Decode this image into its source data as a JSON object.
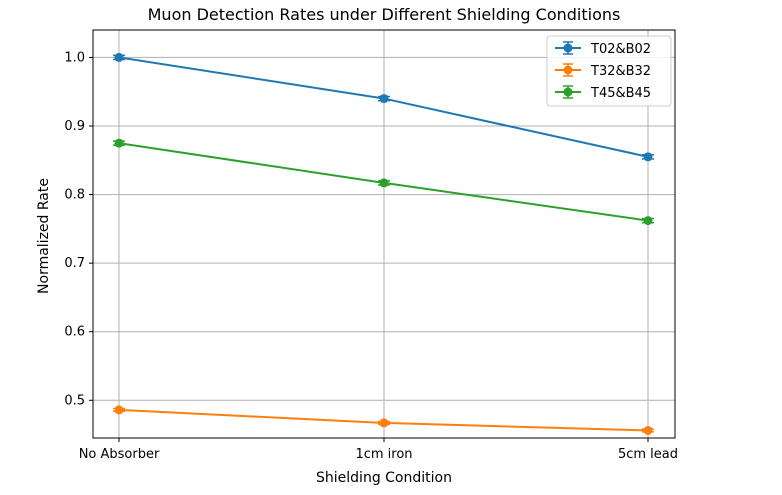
{
  "chart_data": {
    "type": "line",
    "title": "Muon Detection Rates under Different Shielding Conditions",
    "xlabel": "Shielding Condition",
    "ylabel": "Normalized Rate",
    "categories": [
      "No Absorber",
      "1cm iron",
      "5cm lead"
    ],
    "ylim": [
      0.445,
      1.04
    ],
    "yticks": [
      "0.5",
      "0.6",
      "0.7",
      "0.8",
      "0.9",
      "1.0"
    ],
    "grid": true,
    "legend_position": "top-right",
    "series": [
      {
        "name": "T02&B02",
        "color": "#1f77b4",
        "values": [
          1.0,
          0.94,
          0.855
        ],
        "errors": [
          0.003,
          0.003,
          0.003
        ]
      },
      {
        "name": "T32&B32",
        "color": "#ff7f0e",
        "values": [
          0.486,
          0.467,
          0.456
        ],
        "errors": [
          0.002,
          0.002,
          0.002
        ]
      },
      {
        "name": "T45&B45",
        "color": "#2ca02c",
        "values": [
          0.875,
          0.817,
          0.762
        ],
        "errors": [
          0.003,
          0.003,
          0.003
        ]
      }
    ]
  }
}
